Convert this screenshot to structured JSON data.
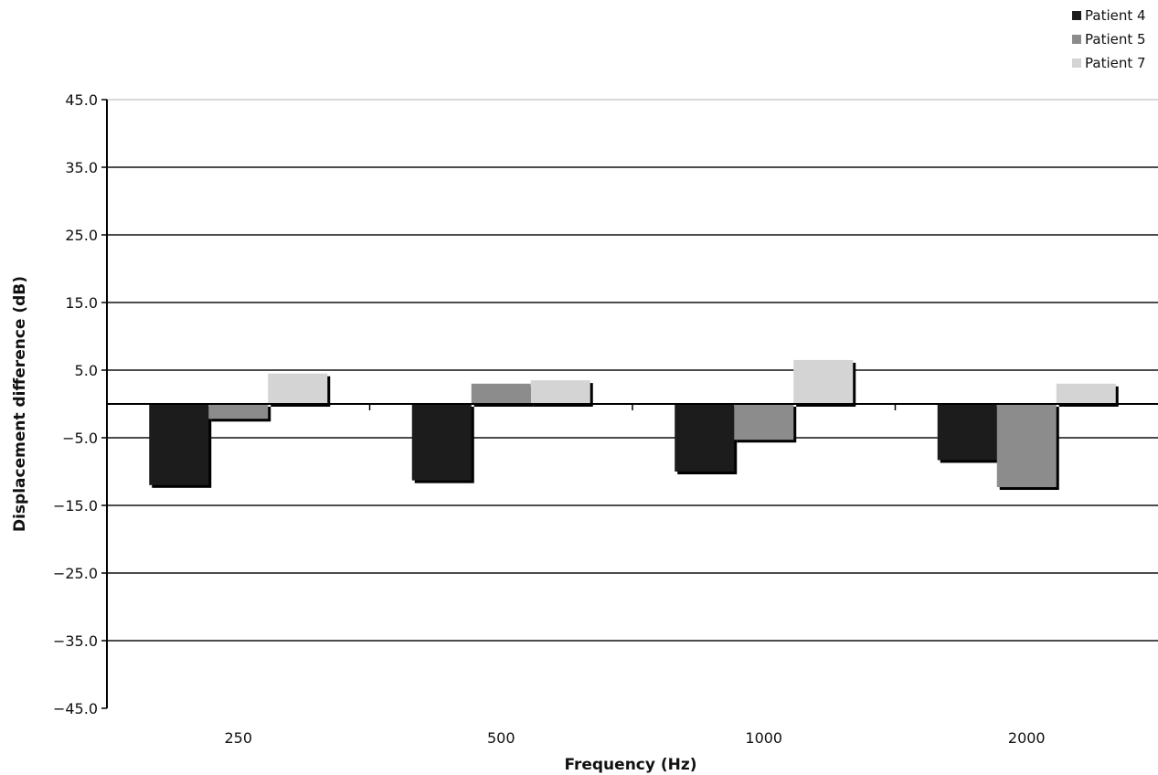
{
  "chart_data": {
    "type": "bar",
    "title": "",
    "xlabel": "Frequency (Hz)",
    "ylabel": "Displacement difference (dB)",
    "categories": [
      "250",
      "500",
      "1000",
      "2000"
    ],
    "ylim": [
      -45,
      45
    ],
    "yticks": [
      45,
      35,
      25,
      15,
      5,
      -5,
      -15,
      -25,
      -35,
      -45
    ],
    "ytick_labels": [
      "45.0",
      "35.0",
      "25.0",
      "15.0",
      "5.0",
      "−5.0",
      "−15.0",
      "−25.0",
      "−35.0",
      "−45.0"
    ],
    "grid": true,
    "legend_position": "top-right",
    "series": [
      {
        "name": "Patient 4",
        "color": "#1c1c1c",
        "values": [
          -12.0,
          -11.3,
          -10.0,
          -8.3
        ]
      },
      {
        "name": "Patient 5",
        "color": "#8c8c8c",
        "values": [
          -2.2,
          3.0,
          -5.3,
          -12.3
        ]
      },
      {
        "name": "Patient 7",
        "color": "#d4d4d4",
        "values": [
          4.5,
          3.5,
          6.5,
          3.0
        ]
      }
    ]
  }
}
